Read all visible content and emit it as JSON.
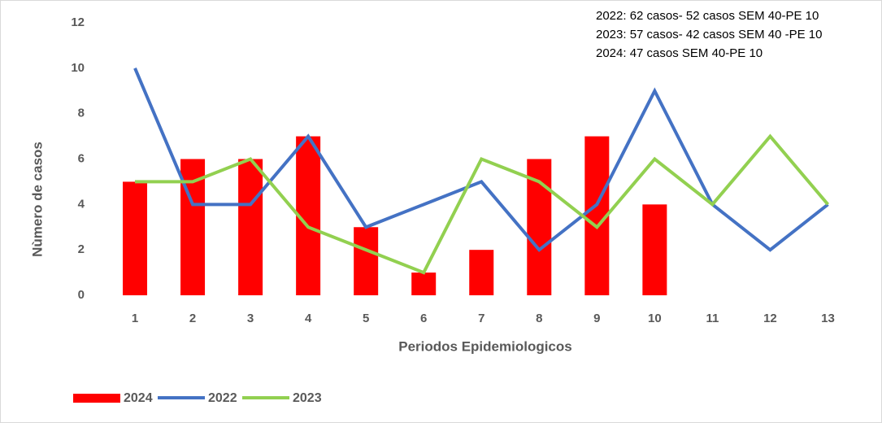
{
  "chart_data": {
    "type": "bar_line",
    "annotations": [
      "2022: 62 casos- 52 casos SEM 40-PE 10",
      "2023: 57 casos- 42 casos SEM 40 -PE 10",
      "2024: 47 casos SEM 40-PE 10"
    ],
    "xlabel": "Periodos Epidemiologicos",
    "ylabel": "Nùmero de casos",
    "categories": [
      1,
      2,
      3,
      4,
      5,
      6,
      7,
      8,
      9,
      10,
      11,
      12,
      13
    ],
    "series": [
      {
        "name": "2024",
        "type": "bar",
        "color": "#ff0000",
        "values": [
          5,
          6,
          6,
          7,
          3,
          1,
          2,
          6,
          7,
          4,
          null,
          null,
          null
        ]
      },
      {
        "name": "2022",
        "type": "line",
        "color": "#4472c4",
        "values": [
          10,
          4,
          4,
          7,
          3,
          4,
          5,
          2,
          4,
          9,
          4,
          2,
          4
        ]
      },
      {
        "name": "2023",
        "type": "line",
        "color": "#92d050",
        "values": [
          5,
          5,
          6,
          3,
          2,
          1,
          6,
          5,
          3,
          6,
          4,
          7,
          4
        ]
      }
    ],
    "ylim": [
      0,
      12
    ],
    "yticks": [
      0,
      2,
      4,
      6,
      8,
      10,
      12
    ],
    "grid": false
  }
}
